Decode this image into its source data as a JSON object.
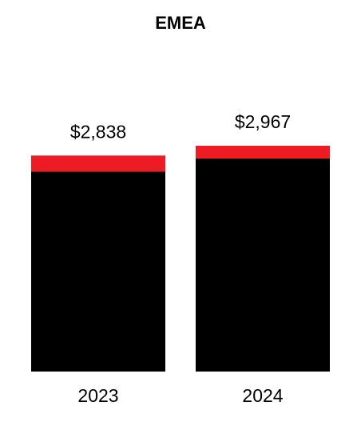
{
  "chart_data": {
    "type": "stacked-bar",
    "title": "EMEA",
    "categories": [
      "2023",
      "2024"
    ],
    "series": [
      {
        "color": "#000000",
        "values": [
          2628,
          2799
        ]
      },
      {
        "color": "#ed1c24",
        "values": [
          210,
          168
        ]
      }
    ],
    "totals": {
      "values": [
        2838,
        2967
      ],
      "value_labels": [
        "$2,838",
        "$2,967"
      ]
    }
  }
}
